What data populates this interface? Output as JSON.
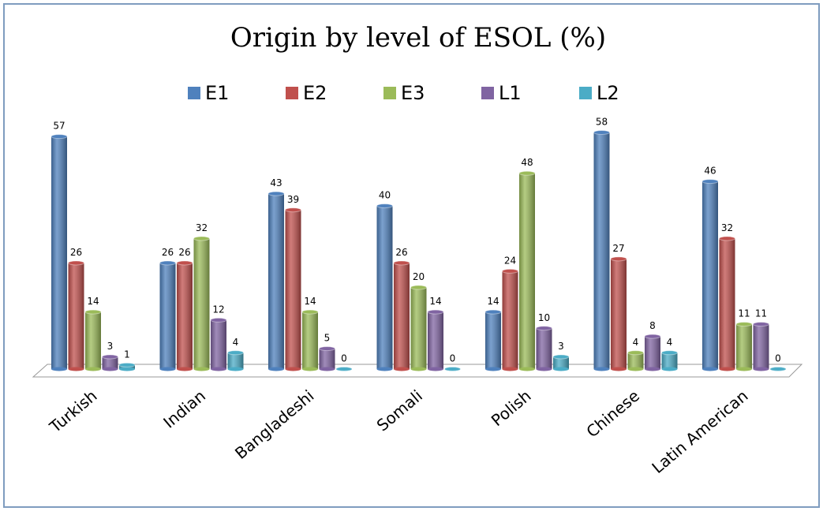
{
  "chart_data": {
    "type": "bar",
    "title": "Origin by level of ESOL  (%)",
    "categories": [
      "Turkish",
      "Indian",
      "Bangladeshi",
      "Somali",
      "Polish",
      "Chinese",
      "Latin American"
    ],
    "series": [
      {
        "name": "E1",
        "color": "#4f81bd",
        "values": [
          57,
          26,
          43,
          40,
          14,
          58,
          46
        ]
      },
      {
        "name": "E2",
        "color": "#c0504d",
        "values": [
          26,
          26,
          39,
          26,
          24,
          27,
          32
        ]
      },
      {
        "name": "E3",
        "color": "#9bbb59",
        "values": [
          14,
          32,
          14,
          20,
          48,
          4,
          11
        ]
      },
      {
        "name": "L1",
        "color": "#8064a2",
        "values": [
          3,
          12,
          5,
          14,
          10,
          8,
          11
        ]
      },
      {
        "name": "L2",
        "color": "#4bacc6",
        "values": [
          1,
          4,
          0,
          0,
          3,
          4,
          0
        ]
      }
    ],
    "legend": "top"
  }
}
